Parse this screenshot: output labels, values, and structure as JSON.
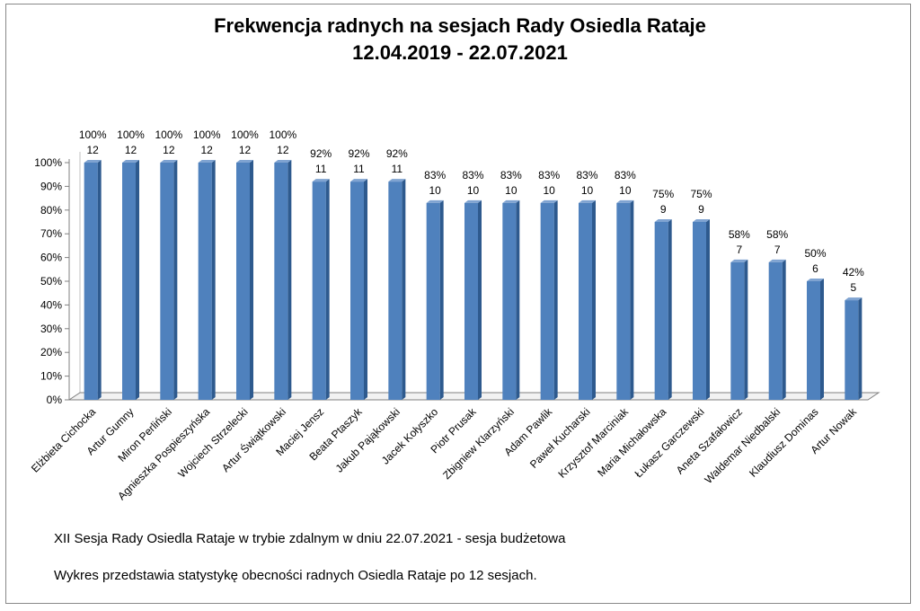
{
  "chart_data": {
    "type": "bar",
    "title": "Frekwencja radnych na sesjach Rady Osiedla Rataje",
    "subtitle": "12.04.2019 - 22.07.2021",
    "categories": [
      "Elżbieta Cichocka",
      "Artur Gumny",
      "Miron Perliński",
      "Agnieszka Pospieszyńska",
      "Wojciech Strzelecki",
      "Artur Świątkowski",
      "Maciej Jensz",
      "Beata Ptaszyk",
      "Jakub Pająkowski",
      "Jacek Kołyszko",
      "Piotr Prusak",
      "Zbigniew Klarzyński",
      "Adam Pawlik",
      "Paweł Kucharski",
      "Krzysztof Marciniak",
      "Maria Michałowska",
      "Łukasz Garczewski",
      "Aneta Szafałowicz",
      "Waldemar Niedbalski",
      "Klaudiusz Dominas",
      "Artur Nowak"
    ],
    "values": [
      100,
      100,
      100,
      100,
      100,
      100,
      92,
      92,
      92,
      83,
      83,
      83,
      83,
      83,
      83,
      75,
      75,
      58,
      58,
      50,
      42
    ],
    "percent_labels": [
      "100%",
      "100%",
      "100%",
      "100%",
      "100%",
      "100%",
      "92%",
      "92%",
      "92%",
      "83%",
      "83%",
      "83%",
      "83%",
      "83%",
      "83%",
      "75%",
      "75%",
      "58%",
      "58%",
      "50%",
      "42%"
    ],
    "counts": [
      12,
      12,
      12,
      12,
      12,
      12,
      11,
      11,
      11,
      10,
      10,
      10,
      10,
      10,
      10,
      9,
      9,
      7,
      7,
      6,
      5
    ],
    "ylim": [
      0,
      100
    ],
    "yticks": [
      "0%",
      "10%",
      "20%",
      "30%",
      "40%",
      "50%",
      "60%",
      "70%",
      "80%",
      "90%",
      "100%"
    ],
    "grid": false,
    "legend": "none",
    "bar_color": "#4F81BD",
    "bar_side_color": "#2E5A8E",
    "bar_top_color": "#7FA3D1"
  },
  "notes": {
    "line1": "XII Sesja Rady Osiedla Rataje w trybie zdalnym w dniu 22.07.2021 - sesja budżetowa",
    "line2": "Wykres przedstawia statystykę obecności radnych Osiedla Rataje po 12 sesjach."
  }
}
